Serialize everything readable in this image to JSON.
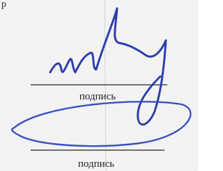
{
  "fields": [
    {
      "label": "подпись"
    },
    {
      "label": "подпись"
    }
  ]
}
